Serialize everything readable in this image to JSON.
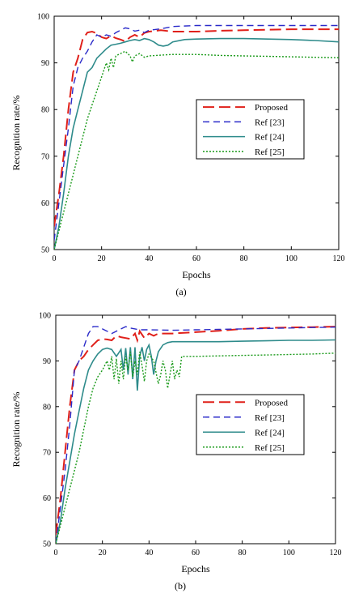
{
  "chart_data": [
    {
      "type": "line",
      "caption": "(a)",
      "xlabel": "Epochs",
      "ylabel": "Recognition rate/%",
      "xlim": [
        0,
        120
      ],
      "ylim": [
        50,
        100
      ],
      "xticks": [
        0,
        20,
        40,
        60,
        80,
        100,
        120
      ],
      "yticks": [
        50,
        60,
        70,
        80,
        90,
        100
      ],
      "grid": false,
      "legend_position": "center-right",
      "series": [
        {
          "name": "Proposed",
          "color": "#e0201a",
          "dash": "long-dash",
          "points": [
            [
              0,
              55
            ],
            [
              2,
              62
            ],
            [
              4,
              70
            ],
            [
              6,
              80
            ],
            [
              8,
              88
            ],
            [
              10,
              91
            ],
            [
              12,
              95
            ],
            [
              14,
              96.5
            ],
            [
              16,
              96.7
            ],
            [
              18,
              96.3
            ],
            [
              20,
              95.5
            ],
            [
              22,
              95.2
            ],
            [
              24,
              95.8
            ],
            [
              26,
              95.3
            ],
            [
              28,
              95
            ],
            [
              30,
              94.6
            ],
            [
              32,
              95.5
            ],
            [
              34,
              96
            ],
            [
              36,
              95.5
            ],
            [
              38,
              96.4
            ],
            [
              40,
              96.7
            ],
            [
              45,
              97.0
            ],
            [
              50,
              96.7
            ],
            [
              60,
              96.7
            ],
            [
              70,
              96.9
            ],
            [
              80,
              97.0
            ],
            [
              90,
              97.1
            ],
            [
              100,
              97.2
            ],
            [
              110,
              97.2
            ],
            [
              120,
              97.2
            ]
          ]
        },
        {
          "name": "Ref [23]",
          "color": "#2b2bc9",
          "dash": "dash",
          "points": [
            [
              0,
              52
            ],
            [
              2,
              60
            ],
            [
              4,
              68
            ],
            [
              6,
              76
            ],
            [
              8,
              85
            ],
            [
              10,
              89
            ],
            [
              12,
              91
            ],
            [
              14,
              92.5
            ],
            [
              16,
              94.5
            ],
            [
              18,
              96
            ],
            [
              20,
              95.5
            ],
            [
              22,
              96
            ],
            [
              24,
              95.7
            ],
            [
              26,
              96.5
            ],
            [
              28,
              97
            ],
            [
              30,
              97.5
            ],
            [
              32,
              97.3
            ],
            [
              34,
              96.8
            ],
            [
              36,
              97
            ],
            [
              38,
              96.5
            ],
            [
              40,
              97
            ],
            [
              45,
              97.3
            ],
            [
              50,
              97.8
            ],
            [
              60,
              98
            ],
            [
              80,
              98
            ],
            [
              100,
              98
            ],
            [
              120,
              98
            ]
          ]
        },
        {
          "name": "Ref [24]",
          "color": "#2e8b8b",
          "dash": "solid",
          "points": [
            [
              0,
              50
            ],
            [
              2,
              55
            ],
            [
              4,
              62
            ],
            [
              6,
              70
            ],
            [
              8,
              76
            ],
            [
              10,
              80
            ],
            [
              12,
              84
            ],
            [
              14,
              88
            ],
            [
              16,
              89
            ],
            [
              18,
              91
            ],
            [
              20,
              92
            ],
            [
              22,
              93
            ],
            [
              24,
              93.8
            ],
            [
              26,
              94
            ],
            [
              28,
              94.2
            ],
            [
              30,
              94.5
            ],
            [
              32,
              94.8
            ],
            [
              34,
              95
            ],
            [
              36,
              94.8
            ],
            [
              38,
              95.2
            ],
            [
              40,
              95
            ],
            [
              42,
              94.5
            ],
            [
              44,
              93.8
            ],
            [
              46,
              93.6
            ],
            [
              48,
              93.8
            ],
            [
              50,
              94.5
            ],
            [
              55,
              95
            ],
            [
              60,
              95.1
            ],
            [
              70,
              95.2
            ],
            [
              80,
              95.2
            ],
            [
              90,
              95.1
            ],
            [
              100,
              95
            ],
            [
              110,
              94.8
            ],
            [
              120,
              94.5
            ]
          ]
        },
        {
          "name": "Ref [25]",
          "color": "#1a9a1a",
          "dash": "dot",
          "points": [
            [
              0,
              50
            ],
            [
              2,
              54
            ],
            [
              4,
              58
            ],
            [
              6,
              62
            ],
            [
              8,
              66
            ],
            [
              10,
              70
            ],
            [
              12,
              74
            ],
            [
              14,
              78
            ],
            [
              16,
              81
            ],
            [
              18,
              84
            ],
            [
              20,
              87
            ],
            [
              22,
              90
            ],
            [
              23,
              88.5
            ],
            [
              24,
              91
            ],
            [
              25,
              89
            ],
            [
              26,
              91.5
            ],
            [
              28,
              92
            ],
            [
              30,
              92.5
            ],
            [
              32,
              91.5
            ],
            [
              33,
              90.2
            ],
            [
              34,
              91.5
            ],
            [
              36,
              92
            ],
            [
              38,
              91.2
            ],
            [
              40,
              91.5
            ],
            [
              50,
              91.8
            ],
            [
              60,
              91.8
            ],
            [
              70,
              91.6
            ],
            [
              80,
              91.5
            ],
            [
              90,
              91.4
            ],
            [
              100,
              91.3
            ],
            [
              110,
              91.2
            ],
            [
              120,
              91.1
            ]
          ]
        }
      ]
    },
    {
      "type": "line",
      "caption": "(b)",
      "xlabel": "Epochs",
      "ylabel": "Recognition rate/%",
      "xlim": [
        0,
        120
      ],
      "ylim": [
        50,
        100
      ],
      "xticks": [
        0,
        20,
        40,
        60,
        80,
        100,
        120
      ],
      "yticks": [
        50,
        60,
        70,
        80,
        90,
        100
      ],
      "grid": false,
      "legend_position": "center-right",
      "series": [
        {
          "name": "Proposed",
          "color": "#e0201a",
          "dash": "long-dash",
          "points": [
            [
              0,
              52
            ],
            [
              2,
              60
            ],
            [
              4,
              70
            ],
            [
              6,
              80
            ],
            [
              8,
              88
            ],
            [
              10,
              90
            ],
            [
              12,
              91
            ],
            [
              14,
              92.5
            ],
            [
              16,
              93.5
            ],
            [
              18,
              94.5
            ],
            [
              20,
              94.8
            ],
            [
              22,
              94.7
            ],
            [
              24,
              94.5
            ],
            [
              26,
              95.5
            ],
            [
              28,
              95.2
            ],
            [
              30,
              95
            ],
            [
              32,
              94.8
            ],
            [
              34,
              96
            ],
            [
              35,
              94.5
            ],
            [
              36,
              96.5
            ],
            [
              38,
              95
            ],
            [
              40,
              96
            ],
            [
              42,
              95.5
            ],
            [
              44,
              96
            ],
            [
              50,
              96
            ],
            [
              60,
              96.3
            ],
            [
              70,
              96.6
            ],
            [
              80,
              97
            ],
            [
              90,
              97.2
            ],
            [
              100,
              97.3
            ],
            [
              110,
              97.4
            ],
            [
              120,
              97.5
            ]
          ]
        },
        {
          "name": "Ref [23]",
          "color": "#2b2bc9",
          "dash": "dash",
          "points": [
            [
              0,
              50
            ],
            [
              2,
              58
            ],
            [
              4,
              66
            ],
            [
              6,
              76
            ],
            [
              8,
              88
            ],
            [
              10,
              90
            ],
            [
              12,
              93
            ],
            [
              14,
              96
            ],
            [
              16,
              97.5
            ],
            [
              18,
              97.5
            ],
            [
              20,
              97
            ],
            [
              22,
              96.5
            ],
            [
              24,
              96
            ],
            [
              26,
              96.5
            ],
            [
              28,
              97
            ],
            [
              30,
              97.5
            ],
            [
              32,
              97.2
            ],
            [
              34,
              97
            ],
            [
              36,
              96.8
            ],
            [
              40,
              96.8
            ],
            [
              50,
              96.7
            ],
            [
              60,
              96.8
            ],
            [
              70,
              96.9
            ],
            [
              80,
              97
            ],
            [
              90,
              97.1
            ],
            [
              100,
              97.2
            ],
            [
              110,
              97.3
            ],
            [
              120,
              97.4
            ]
          ]
        },
        {
          "name": "Ref [24]",
          "color": "#2e8b8b",
          "dash": "solid",
          "points": [
            [
              0,
              50
            ],
            [
              2,
              55
            ],
            [
              4,
              62
            ],
            [
              6,
              68
            ],
            [
              8,
              74
            ],
            [
              10,
              79
            ],
            [
              12,
              84
            ],
            [
              14,
              88
            ],
            [
              16,
              90
            ],
            [
              18,
              91.5
            ],
            [
              20,
              92.5
            ],
            [
              22,
              92.8
            ],
            [
              24,
              92.5
            ],
            [
              26,
              91
            ],
            [
              28,
              92.5
            ],
            [
              29,
              88
            ],
            [
              30,
              92.8
            ],
            [
              31,
              87
            ],
            [
              32,
              93
            ],
            [
              33,
              86
            ],
            [
              34,
              93
            ],
            [
              35,
              83.5
            ],
            [
              36,
              91
            ],
            [
              37,
              93
            ],
            [
              38,
              90
            ],
            [
              39,
              92.5
            ],
            [
              40,
              93.5
            ],
            [
              41,
              91
            ],
            [
              42,
              87
            ],
            [
              43,
              90
            ],
            [
              44,
              92
            ],
            [
              46,
              93.5
            ],
            [
              48,
              94
            ],
            [
              50,
              94.2
            ],
            [
              60,
              94.2
            ],
            [
              70,
              94.2
            ],
            [
              80,
              94.3
            ],
            [
              90,
              94.4
            ],
            [
              100,
              94.5
            ],
            [
              110,
              94.5
            ],
            [
              120,
              94.6
            ]
          ]
        },
        {
          "name": "Ref [25]",
          "color": "#1a9a1a",
          "dash": "dot",
          "points": [
            [
              0,
              50
            ],
            [
              2,
              54
            ],
            [
              4,
              58
            ],
            [
              6,
              62
            ],
            [
              8,
              66
            ],
            [
              10,
              70
            ],
            [
              12,
              75
            ],
            [
              14,
              80
            ],
            [
              16,
              84
            ],
            [
              18,
              86.5
            ],
            [
              20,
              88
            ],
            [
              22,
              90
            ],
            [
              23,
              88
            ],
            [
              24,
              91
            ],
            [
              25,
              86
            ],
            [
              26,
              90.5
            ],
            [
              27,
              85
            ],
            [
              28,
              90
            ],
            [
              29,
              86
            ],
            [
              30,
              91
            ],
            [
              31,
              88
            ],
            [
              32,
              92
            ],
            [
              33,
              86.5
            ],
            [
              34,
              90
            ],
            [
              35,
              87
            ],
            [
              36,
              92
            ],
            [
              37,
              89
            ],
            [
              38,
              85.5
            ],
            [
              39,
              90
            ],
            [
              40,
              91.5
            ],
            [
              42,
              90
            ],
            [
              44,
              85
            ],
            [
              45,
              87
            ],
            [
              46,
              90
            ],
            [
              47,
              88
            ],
            [
              48,
              84
            ],
            [
              49,
              87
            ],
            [
              50,
              90
            ],
            [
              51,
              86
            ],
            [
              52,
              88
            ],
            [
              53,
              86.5
            ],
            [
              54,
              91
            ],
            [
              60,
              91
            ],
            [
              70,
              91.1
            ],
            [
              80,
              91.2
            ],
            [
              90,
              91.3
            ],
            [
              100,
              91.4
            ],
            [
              110,
              91.5
            ],
            [
              120,
              91.7
            ]
          ]
        }
      ]
    }
  ]
}
